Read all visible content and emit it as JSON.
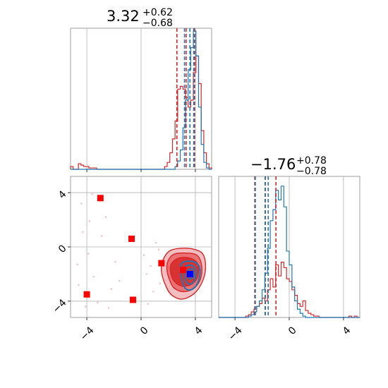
{
  "colors": {
    "red": "#d62728",
    "blue": "#1f77b4",
    "grid": "#b0b0b0",
    "frame": "#888888"
  },
  "chart_data": {
    "type": "corner",
    "axis_range": [
      -5.2,
      5.2
    ],
    "ticks": [
      -4,
      0,
      4
    ],
    "tick_labels": [
      "−4",
      "0",
      "4"
    ],
    "grid": true,
    "params": [
      {
        "title": {
          "value": "3.32",
          "upper": "+0.62",
          "lower": "−0.68"
        },
        "quantiles": {
          "red": [
            2.64,
            3.32,
            3.94
          ],
          "blue": [
            3.2,
            3.6,
            3.88
          ]
        },
        "hist_red": [
          0.02,
          0.0,
          0.0,
          0.04,
          0.03,
          0.02,
          0.02,
          0.01,
          0.01,
          0.01,
          0.0,
          0.0,
          0.0,
          0.0,
          0.0,
          0.0,
          0.0,
          0.0,
          0.0,
          0.0,
          0.0,
          0.0,
          0.0,
          0.0,
          0.0,
          0.0,
          0.0,
          0.0,
          0.0,
          0.0,
          0.0,
          0.0,
          0.0,
          0.0,
          0.0,
          0.0,
          0.02,
          0.05,
          0.12,
          0.22,
          0.35,
          0.58,
          0.6,
          0.58,
          0.52,
          0.45,
          0.5,
          0.7,
          0.82,
          0.62,
          0.28,
          0.12,
          0.04,
          0.01
        ],
        "hist_blue": [
          0.0,
          0.0,
          0.0,
          0.0,
          0.0,
          0.0,
          0.0,
          0.0,
          0.0,
          0.0,
          0.0,
          0.0,
          0.0,
          0.0,
          0.0,
          0.0,
          0.0,
          0.0,
          0.0,
          0.0,
          0.0,
          0.0,
          0.0,
          0.0,
          0.0,
          0.0,
          0.0,
          0.0,
          0.0,
          0.0,
          0.0,
          0.0,
          0.0,
          0.0,
          0.0,
          0.0,
          0.0,
          0.0,
          0.0,
          0.0,
          0.02,
          0.06,
          0.14,
          0.3,
          0.5,
          0.72,
          0.88,
          1.0,
          0.82,
          0.45,
          0.18,
          0.05,
          0.01,
          0.0
        ],
        "hist_range": [
          -5.2,
          5.2
        ]
      },
      {
        "title": {
          "value": "−1.76",
          "upper": "+0.78",
          "lower": "−0.78"
        },
        "quantiles": {
          "red": [
            -2.54,
            -1.76,
            -0.98
          ],
          "blue": [
            -2.5,
            -1.78,
            -1.55
          ]
        },
        "hist_red": [
          0.0,
          0.0,
          0.0,
          0.0,
          0.0,
          0.0,
          0.0,
          0.0,
          0.0,
          0.0,
          0.01,
          0.02,
          0.04,
          0.06,
          0.08,
          0.1,
          0.14,
          0.12,
          0.2,
          0.28,
          0.22,
          0.38,
          0.3,
          0.4,
          0.36,
          0.28,
          0.26,
          0.2,
          0.16,
          0.1,
          0.08,
          0.12,
          0.05,
          0.03,
          0.02,
          0.01,
          0.01,
          0.0,
          0.0,
          0.0,
          0.0,
          0.0,
          0.0,
          0.0,
          0.0,
          0.0,
          0.0,
          0.0,
          0.01,
          0.0,
          0.01,
          0.0
        ],
        "hist_blue": [
          0.0,
          0.0,
          0.0,
          0.0,
          0.0,
          0.0,
          0.0,
          0.0,
          0.0,
          0.0,
          0.0,
          0.01,
          0.02,
          0.04,
          0.08,
          0.12,
          0.2,
          0.32,
          0.5,
          0.7,
          0.78,
          0.92,
          0.85,
          0.95,
          0.8,
          0.48,
          0.38,
          0.22,
          0.12,
          0.06,
          0.03,
          0.01,
          0.0,
          0.0,
          0.0,
          0.0,
          0.0,
          0.0,
          0.0,
          0.0,
          0.0,
          0.0,
          0.0,
          0.0,
          0.0,
          0.0,
          0.0,
          0.0,
          0.0,
          0.0,
          0.0,
          0.0
        ],
        "hist_range": [
          -5.2,
          5.2
        ]
      }
    ],
    "joint": {
      "red_contours": [
        [
          [
            1.6,
            -1.0
          ],
          [
            2.1,
            -0.3
          ],
          [
            3.0,
            -0.1
          ],
          [
            4.0,
            -0.2
          ],
          [
            4.6,
            -0.6
          ],
          [
            4.75,
            -1.6
          ],
          [
            4.5,
            -2.6
          ],
          [
            3.9,
            -3.45
          ],
          [
            3.0,
            -3.85
          ],
          [
            2.2,
            -3.5
          ],
          [
            1.75,
            -2.7
          ],
          [
            1.5,
            -1.8
          ]
        ],
        [
          [
            2.0,
            -1.0
          ],
          [
            2.4,
            -0.55
          ],
          [
            3.2,
            -0.45
          ],
          [
            4.1,
            -0.6
          ],
          [
            4.45,
            -1.3
          ],
          [
            4.4,
            -2.3
          ],
          [
            3.9,
            -3.05
          ],
          [
            3.1,
            -3.3
          ],
          [
            2.4,
            -3.0
          ],
          [
            2.05,
            -2.3
          ],
          [
            1.9,
            -1.6
          ]
        ],
        [
          [
            2.2,
            -1.3
          ],
          [
            2.7,
            -0.85
          ],
          [
            3.5,
            -0.8
          ],
          [
            4.15,
            -1.2
          ],
          [
            4.2,
            -2.1
          ],
          [
            3.8,
            -2.7
          ],
          [
            3.1,
            -2.9
          ],
          [
            2.5,
            -2.6
          ],
          [
            2.2,
            -2.0
          ]
        ]
      ],
      "blue_contours": [
        [
          [
            3.0,
            -1.2
          ],
          [
            3.5,
            -1.05
          ],
          [
            4.1,
            -1.2
          ],
          [
            4.35,
            -1.8
          ],
          [
            4.15,
            -2.7
          ],
          [
            3.7,
            -3.15
          ],
          [
            3.25,
            -3.05
          ],
          [
            3.0,
            -2.4
          ],
          [
            2.9,
            -1.7
          ]
        ],
        [
          [
            3.25,
            -1.45
          ],
          [
            3.7,
            -1.35
          ],
          [
            4.05,
            -1.7
          ],
          [
            3.95,
            -2.45
          ],
          [
            3.6,
            -2.75
          ],
          [
            3.3,
            -2.5
          ],
          [
            3.2,
            -1.9
          ]
        ],
        [
          [
            3.45,
            -1.7
          ],
          [
            3.8,
            -1.65
          ],
          [
            3.85,
            -2.2
          ],
          [
            3.55,
            -2.35
          ],
          [
            3.4,
            -2.0
          ]
        ]
      ],
      "red_points": [
        [
          -3.0,
          3.6
        ],
        [
          -0.7,
          0.6
        ],
        [
          1.5,
          -1.2
        ],
        [
          -4.0,
          -3.5
        ],
        [
          -0.6,
          -3.9
        ],
        [
          3.1,
          -1.7
        ]
      ],
      "blue_point": [
        3.6,
        -2.0
      ],
      "scatter_seed": [
        [
          -4.4,
          3.2
        ],
        [
          -3.8,
          1.9
        ],
        [
          -2.6,
          2.2
        ],
        [
          -4.7,
          -1.3
        ],
        [
          -3.5,
          -2.2
        ],
        [
          -4.1,
          -4.4
        ],
        [
          -2.2,
          -3.1
        ],
        [
          -3.9,
          -0.5
        ],
        [
          -1.6,
          -2.5
        ],
        [
          0.4,
          -2.0
        ],
        [
          0.9,
          -3.3
        ],
        [
          0.2,
          -0.6
        ],
        [
          1.1,
          0.3
        ],
        [
          -4.6,
          -2.8
        ],
        [
          -3.2,
          -4.1
        ],
        [
          1.4,
          -2.7
        ],
        [
          0.7,
          -1.4
        ],
        [
          -2.9,
          0.8
        ],
        [
          -1.9,
          -1.1
        ],
        [
          -4.3,
          1.1
        ],
        [
          1.3,
          -0.2
        ],
        [
          0.5,
          -4.2
        ],
        [
          -3.6,
          3.9
        ],
        [
          -2.4,
          -4.5
        ]
      ]
    }
  }
}
